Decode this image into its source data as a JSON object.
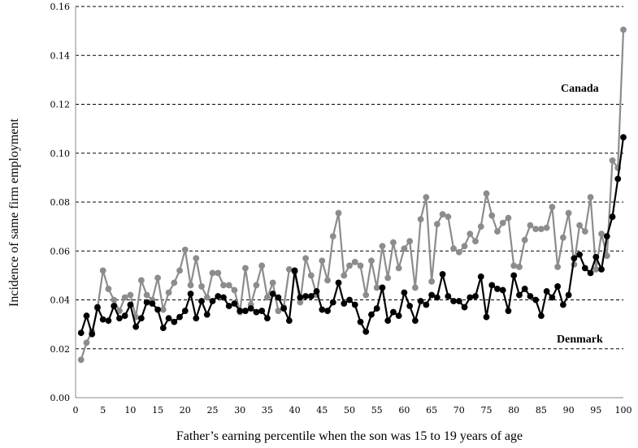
{
  "chart_data": {
    "type": "line",
    "xlabel": "Father’s earning percentile when the son was 15 to 19 years of age",
    "ylabel": "Incidence of same firm employment",
    "xlim": [
      0,
      100
    ],
    "ylim": [
      0,
      0.16
    ],
    "x_ticks": [
      "0",
      "5",
      "10",
      "15",
      "20",
      "25",
      "30",
      "35",
      "40",
      "45",
      "50",
      "55",
      "60",
      "65",
      "70",
      "75",
      "80",
      "85",
      "90",
      "95",
      "100"
    ],
    "y_ticks": [
      "0.00",
      "0.02",
      "0.04",
      "0.06",
      "0.08",
      "0.10",
      "0.12",
      "0.14",
      "0.16"
    ],
    "grid": "horizontal dashed",
    "x": [
      1,
      2,
      3,
      4,
      5,
      6,
      7,
      8,
      9,
      10,
      11,
      12,
      13,
      14,
      15,
      16,
      17,
      18,
      19,
      20,
      21,
      22,
      23,
      24,
      25,
      26,
      27,
      28,
      29,
      30,
      31,
      32,
      33,
      34,
      35,
      36,
      37,
      38,
      39,
      40,
      41,
      42,
      43,
      44,
      45,
      46,
      47,
      48,
      49,
      50,
      51,
      52,
      53,
      54,
      55,
      56,
      57,
      58,
      59,
      60,
      61,
      62,
      63,
      64,
      65,
      66,
      67,
      68,
      69,
      70,
      71,
      72,
      73,
      74,
      75,
      76,
      77,
      78,
      79,
      80,
      81,
      82,
      83,
      84,
      85,
      86,
      87,
      88,
      89,
      90,
      91,
      92,
      93,
      94,
      95,
      96,
      97,
      98,
      99,
      100
    ],
    "series": [
      {
        "name": "Canada",
        "color": "#8c8c8c",
        "values": [
          0.0155,
          0.0225,
          0.027,
          0.0365,
          0.052,
          0.0445,
          0.04,
          0.0355,
          0.041,
          0.042,
          0.033,
          0.048,
          0.042,
          0.04,
          0.049,
          0.036,
          0.043,
          0.047,
          0.052,
          0.0605,
          0.046,
          0.057,
          0.0455,
          0.041,
          0.051,
          0.051,
          0.046,
          0.046,
          0.044,
          0.035,
          0.053,
          0.038,
          0.046,
          0.054,
          0.041,
          0.047,
          0.0355,
          0.037,
          0.0525,
          0.0515,
          0.039,
          0.057,
          0.05,
          0.042,
          0.056,
          0.048,
          0.066,
          0.0755,
          0.05,
          0.054,
          0.0555,
          0.054,
          0.042,
          0.056,
          0.045,
          0.062,
          0.049,
          0.0635,
          0.053,
          0.061,
          0.064,
          0.045,
          0.073,
          0.082,
          0.0475,
          0.071,
          0.075,
          0.074,
          0.061,
          0.0595,
          0.062,
          0.067,
          0.064,
          0.07,
          0.0835,
          0.0745,
          0.068,
          0.0715,
          0.0735,
          0.054,
          0.0535,
          0.0645,
          0.0705,
          0.069,
          0.069,
          0.0695,
          0.078,
          0.0535,
          0.0655,
          0.0755,
          0.0545,
          0.0705,
          0.068,
          0.082,
          0.0525,
          0.067,
          0.058,
          0.097,
          0.094,
          0.1505
        ]
      },
      {
        "name": "Denmark",
        "color": "#000000",
        "values": [
          0.0265,
          0.0335,
          0.026,
          0.037,
          0.032,
          0.0315,
          0.0375,
          0.0325,
          0.0335,
          0.038,
          0.029,
          0.0325,
          0.039,
          0.0385,
          0.036,
          0.0285,
          0.0325,
          0.031,
          0.033,
          0.0355,
          0.0425,
          0.0325,
          0.0395,
          0.034,
          0.0395,
          0.0415,
          0.041,
          0.0375,
          0.0385,
          0.0355,
          0.0355,
          0.0365,
          0.035,
          0.0355,
          0.0325,
          0.0425,
          0.041,
          0.0365,
          0.0315,
          0.052,
          0.041,
          0.0415,
          0.0415,
          0.0435,
          0.036,
          0.0355,
          0.039,
          0.047,
          0.0385,
          0.04,
          0.038,
          0.031,
          0.027,
          0.034,
          0.0365,
          0.045,
          0.0315,
          0.035,
          0.0335,
          0.043,
          0.0375,
          0.0315,
          0.0395,
          0.038,
          0.042,
          0.041,
          0.0505,
          0.0415,
          0.0395,
          0.0395,
          0.037,
          0.041,
          0.0415,
          0.0495,
          0.033,
          0.046,
          0.0445,
          0.044,
          0.0355,
          0.05,
          0.042,
          0.0445,
          0.0415,
          0.04,
          0.0335,
          0.0435,
          0.041,
          0.0455,
          0.038,
          0.042,
          0.057,
          0.0585,
          0.053,
          0.051,
          0.0575,
          0.0525,
          0.066,
          0.074,
          0.0895,
          0.1065
        ]
      }
    ]
  }
}
